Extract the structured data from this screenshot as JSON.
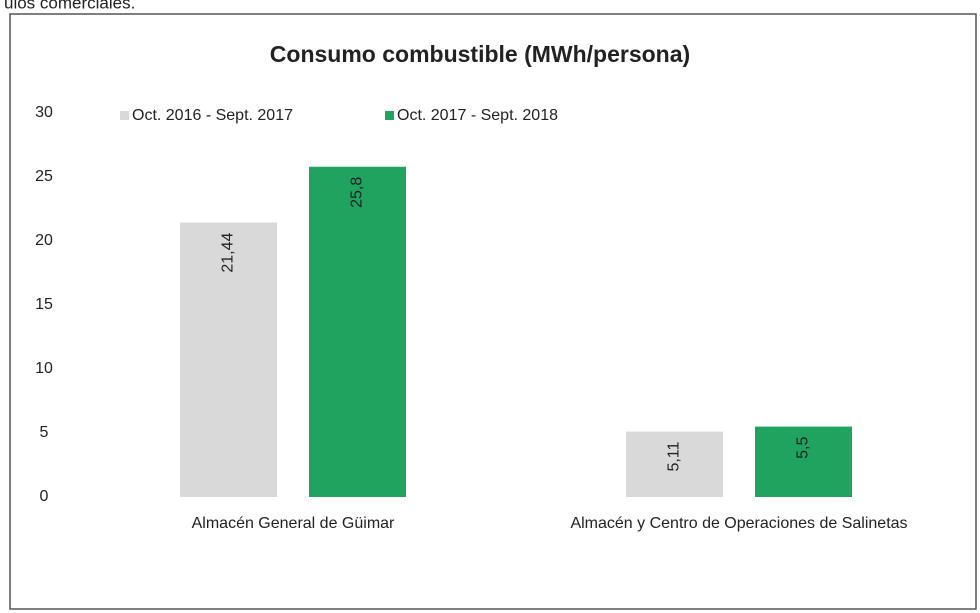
{
  "page_text": "ulos comerciales.",
  "chart_data": {
    "type": "bar",
    "title": "Consumo combustible (MWh/persona)",
    "categories": [
      "Almacén General de Güimar",
      "Almacén y Centro de Operaciones de Salinetas"
    ],
    "series": [
      {
        "name": "Oct. 2016 - Sept. 2017",
        "color": "#d9d9d9",
        "values": [
          21.44,
          5.11
        ],
        "value_labels": [
          "21,44",
          "5,11"
        ]
      },
      {
        "name": "Oct. 2017 - Sept. 2018",
        "color": "#1fa35f",
        "values": [
          25.8,
          5.5
        ],
        "value_labels": [
          "25,8",
          "5,5"
        ]
      }
    ],
    "ylim": [
      0,
      30
    ],
    "yticks": [
      0,
      5,
      10,
      15,
      20,
      25,
      30
    ],
    "grid": false,
    "legend": "top"
  }
}
